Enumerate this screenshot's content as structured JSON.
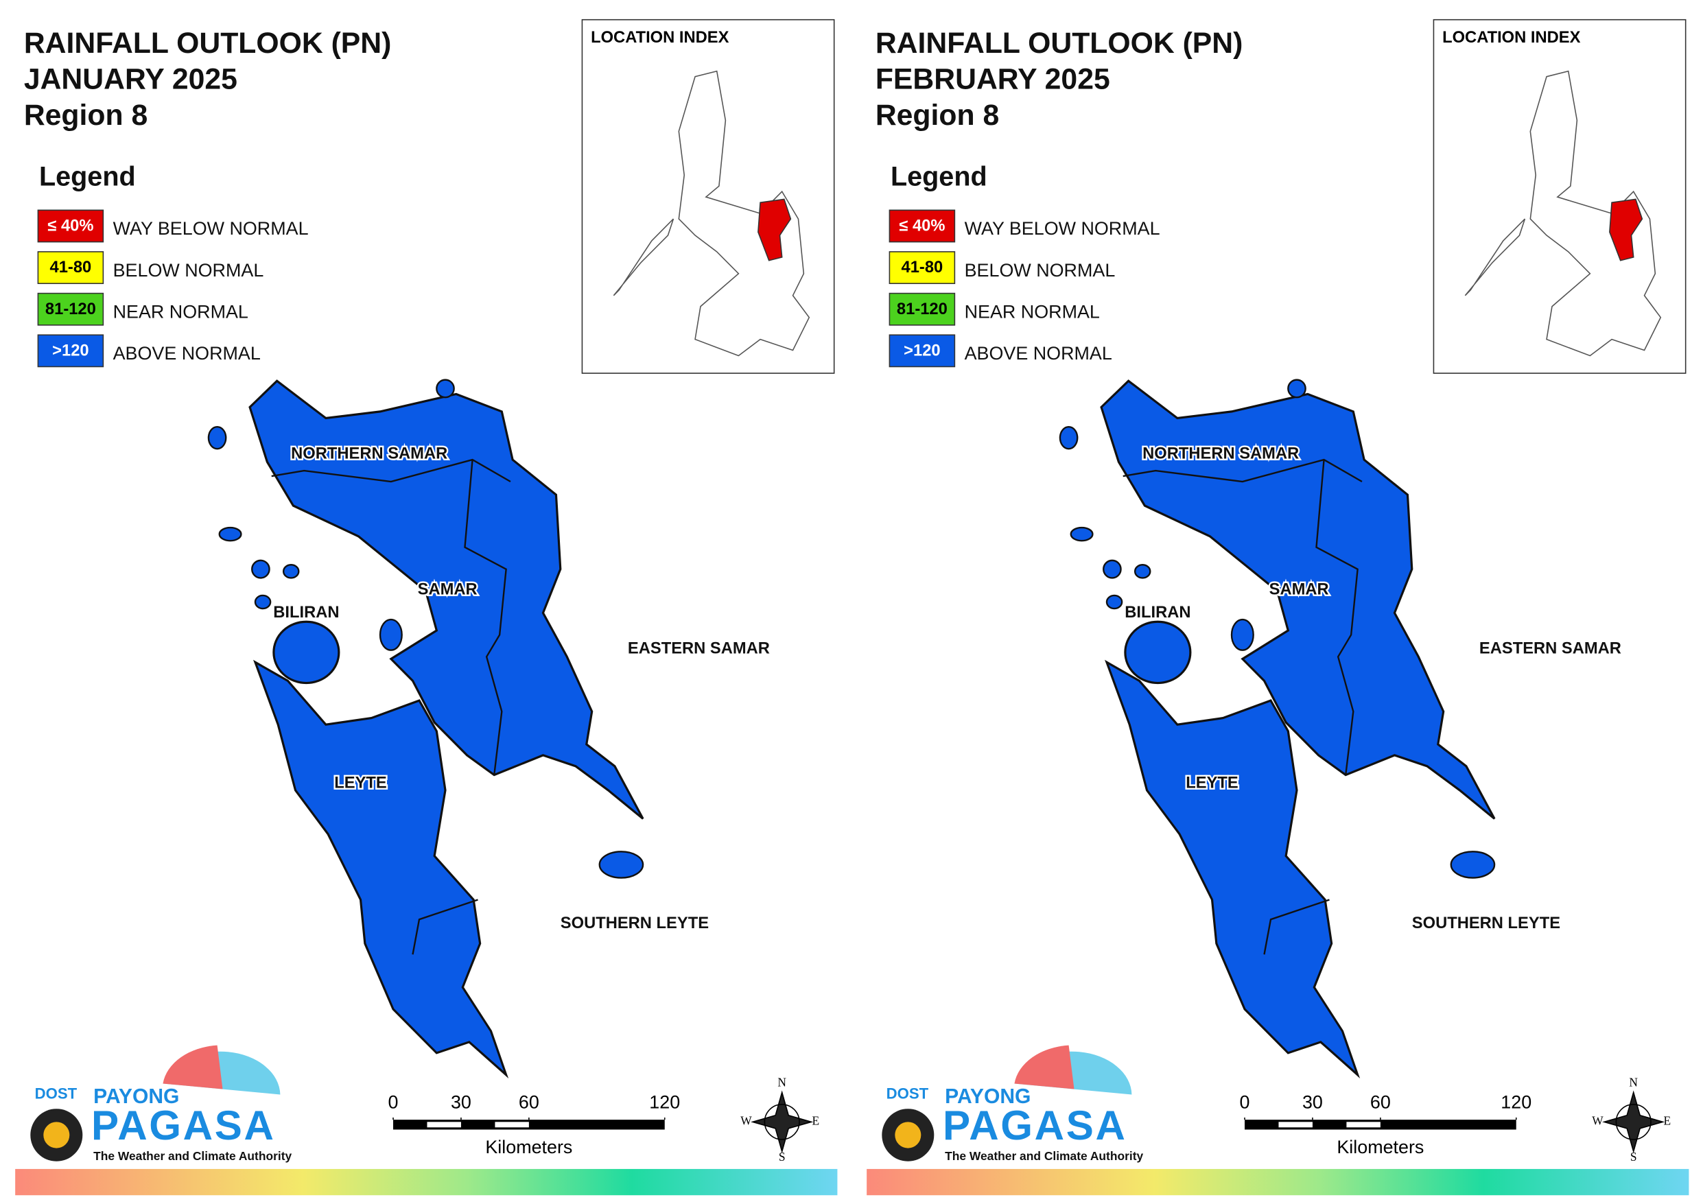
{
  "panels": [
    {
      "title": [
        "RAINFALL OUTLOOK (PN)",
        "JANUARY 2025",
        "Region 8"
      ],
      "legend": {
        "title": "Legend",
        "items": [
          {
            "swatch": "≤ 40%",
            "label": "WAY BELOW NORMAL",
            "color": "#e00000"
          },
          {
            "swatch": "41-80",
            "label": "BELOW NORMAL",
            "color": "#ffff00"
          },
          {
            "swatch": "81-120",
            "label": "NEAR NORMAL",
            "color": "#4cd21e"
          },
          {
            "swatch": ">120",
            "label": "ABOVE NORMAL",
            "color": "#0a5ae6"
          }
        ]
      },
      "location_index": "LOCATION INDEX",
      "regions": [
        {
          "name": "NORTHERN SAMAR",
          "color": "#0a5ae6"
        },
        {
          "name": "SAMAR",
          "color": "#0a5ae6"
        },
        {
          "name": "BILIRAN",
          "color": "#0a5ae6"
        },
        {
          "name": "EASTERN SAMAR",
          "color": "#0a5ae6"
        },
        {
          "name": "LEYTE",
          "color": "#0a5ae6"
        },
        {
          "name": "SOUTHERN LEYTE",
          "color": "#0a5ae6"
        }
      ],
      "scale": {
        "ticks": [
          0,
          30,
          60,
          120
        ],
        "unit": "Kilometers"
      },
      "compass": [
        "N",
        "E",
        "S",
        "W"
      ],
      "logo": {
        "dost": "DOST",
        "payong": "PAYONG",
        "pagasa": "PAGASA",
        "tagline": "The Weather and Climate Authority"
      }
    },
    {
      "title": [
        "RAINFALL OUTLOOK (PN)",
        "FEBRUARY 2025",
        "Region 8"
      ],
      "legend": {
        "title": "Legend",
        "items": [
          {
            "swatch": "≤ 40%",
            "label": "WAY BELOW NORMAL",
            "color": "#e00000"
          },
          {
            "swatch": "41-80",
            "label": "BELOW NORMAL",
            "color": "#ffff00"
          },
          {
            "swatch": "81-120",
            "label": "NEAR NORMAL",
            "color": "#4cd21e"
          },
          {
            "swatch": ">120",
            "label": "ABOVE NORMAL",
            "color": "#0a5ae6"
          }
        ]
      },
      "location_index": "LOCATION INDEX",
      "regions": [
        {
          "name": "NORTHERN SAMAR",
          "color": "#0a5ae6"
        },
        {
          "name": "SAMAR",
          "color": "#0a5ae6"
        },
        {
          "name": "BILIRAN",
          "color": "#0a5ae6"
        },
        {
          "name": "EASTERN SAMAR",
          "color": "#0a5ae6"
        },
        {
          "name": "LEYTE",
          "color": "#0a5ae6"
        },
        {
          "name": "SOUTHERN LEYTE",
          "color": "#0a5ae6"
        }
      ],
      "scale": {
        "ticks": [
          0,
          30,
          60,
          120
        ],
        "unit": "Kilometers"
      },
      "compass": [
        "N",
        "E",
        "S",
        "W"
      ],
      "logo": {
        "dost": "DOST",
        "payong": "PAYONG",
        "pagasa": "PAGASA",
        "tagline": "The Weather and Climate Authority"
      }
    }
  ]
}
